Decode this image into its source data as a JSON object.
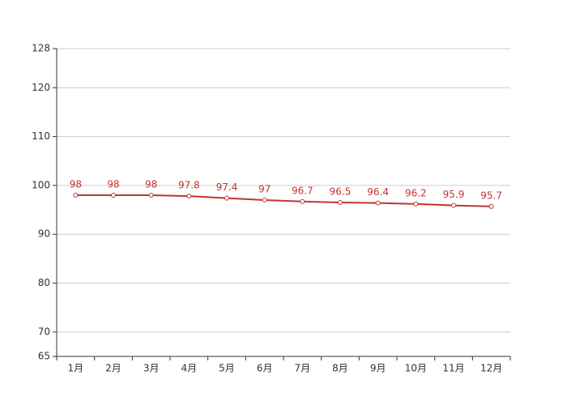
{
  "chart_data": {
    "type": "line",
    "categories": [
      "1月",
      "2月",
      "3月",
      "4月",
      "5月",
      "6月",
      "7月",
      "8月",
      "9月",
      "10月",
      "11月",
      "12月"
    ],
    "values": [
      98,
      98,
      98,
      97.8,
      97.4,
      97,
      96.7,
      96.5,
      96.4,
      96.2,
      95.9,
      95.7
    ],
    "color": "#c23531",
    "ylim": [
      65,
      128
    ],
    "yticks": [
      65,
      70,
      80,
      90,
      100,
      110,
      120,
      128
    ],
    "grid": true
  }
}
